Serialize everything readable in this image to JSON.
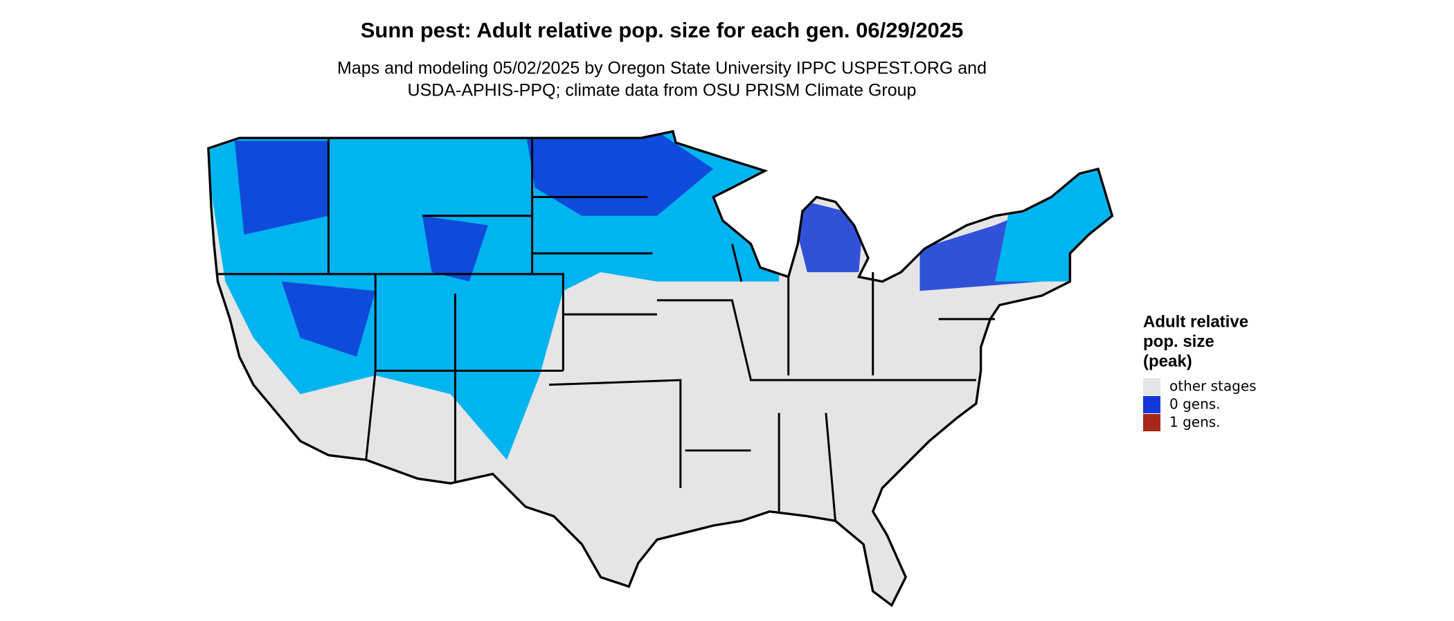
{
  "header": {
    "title": "Sunn pest: Adult relative pop. size for each gen. 06/29/2025",
    "subtitle_lines": [
      "Maps and modeling 05/02/2025 by Oregon State University IPPC USPEST.ORG and",
      "USDA-APHIS-PPQ; climate data from OSU PRISM Climate Group"
    ]
  },
  "legend": {
    "title_lines": [
      "Adult relative",
      "pop. size",
      "(peak)"
    ],
    "items": [
      {
        "label": "other stages",
        "color": "#e5e5e5"
      },
      {
        "label": "0 gens.",
        "color": "#1238d6"
      },
      {
        "label": "1 gens.",
        "color": "#a8261a"
      }
    ]
  }
}
